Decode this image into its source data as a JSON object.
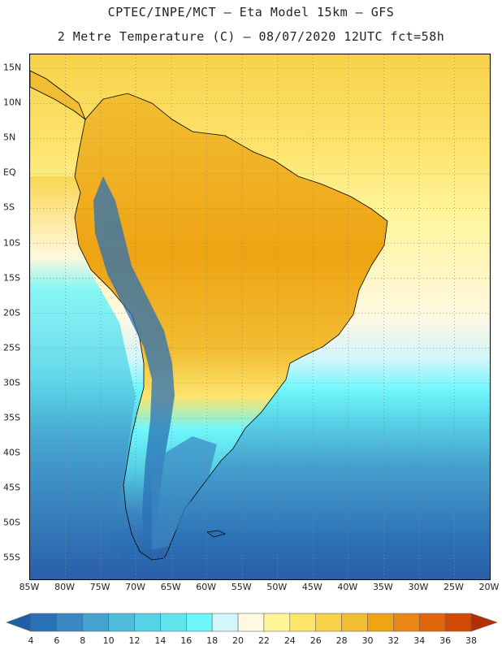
{
  "header": {
    "line1": "CPTEC/INPE/MCT –  Eta Model 15km – GFS",
    "line2": "2 Metre Temperature (C) – 08/07/2020 12UTC fct=58h"
  },
  "map": {
    "region": "South America",
    "lon_range": [
      -85,
      -20
    ],
    "lat_range": [
      -58,
      17
    ],
    "lat_ticks": [
      {
        "value": 15,
        "label": "15N"
      },
      {
        "value": 10,
        "label": "10N"
      },
      {
        "value": 5,
        "label": "5N"
      },
      {
        "value": 0,
        "label": "EQ"
      },
      {
        "value": -5,
        "label": "5S"
      },
      {
        "value": -10,
        "label": "10S"
      },
      {
        "value": -15,
        "label": "15S"
      },
      {
        "value": -20,
        "label": "20S"
      },
      {
        "value": -25,
        "label": "25S"
      },
      {
        "value": -30,
        "label": "30S"
      },
      {
        "value": -35,
        "label": "35S"
      },
      {
        "value": -40,
        "label": "40S"
      },
      {
        "value": -45,
        "label": "45S"
      },
      {
        "value": -50,
        "label": "50S"
      },
      {
        "value": -55,
        "label": "55S"
      }
    ],
    "lon_ticks": [
      {
        "value": -85,
        "label": "85W"
      },
      {
        "value": -80,
        "label": "80W"
      },
      {
        "value": -75,
        "label": "75W"
      },
      {
        "value": -70,
        "label": "70W"
      },
      {
        "value": -65,
        "label": "65W"
      },
      {
        "value": -60,
        "label": "60W"
      },
      {
        "value": -55,
        "label": "55W"
      },
      {
        "value": -50,
        "label": "50W"
      },
      {
        "value": -45,
        "label": "45W"
      },
      {
        "value": -40,
        "label": "40W"
      },
      {
        "value": -35,
        "label": "35W"
      },
      {
        "value": -30,
        "label": "30W"
      },
      {
        "value": -25,
        "label": "25W"
      },
      {
        "value": -20,
        "label": "20W"
      }
    ],
    "grid": true
  },
  "colorbar": {
    "labels": [
      "4",
      "6",
      "8",
      "10",
      "12",
      "14",
      "16",
      "18",
      "20",
      "22",
      "24",
      "26",
      "28",
      "30",
      "32",
      "34",
      "36",
      "38"
    ],
    "colors": [
      "#1e5fa8",
      "#2a70b4",
      "#3a86c0",
      "#45a2cf",
      "#4fbcdc",
      "#58d2e6",
      "#62e4ee",
      "#6ff6fb",
      "#d2f6fb",
      "#fff8e2",
      "#fff599",
      "#fde46d",
      "#f8d24a",
      "#f2bd33",
      "#eea413",
      "#e98718",
      "#e0660c",
      "#cf4a04",
      "#b32e02"
    ]
  }
}
